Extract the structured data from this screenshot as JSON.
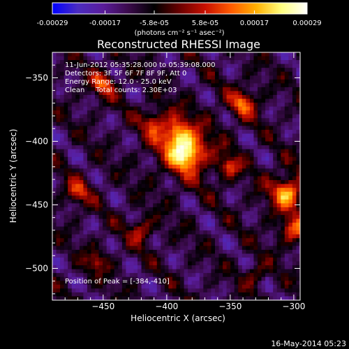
{
  "chart_data": {
    "type": "heatmap",
    "title": "Reconstructed RHESSI Image",
    "xlabel": "Heliocentric X (arcsec)",
    "ylabel": "Heliocentric Y (arcsec)",
    "xlim": [
      -490,
      -295
    ],
    "ylim": [
      -525,
      -330
    ],
    "x_ticks": [
      -450,
      -400,
      -350,
      -300
    ],
    "y_ticks": [
      -350,
      -400,
      -450,
      -500
    ],
    "colorbar": {
      "range": [
        -0.00029,
        0.00029
      ],
      "tick_values": [
        -0.00029,
        -0.00017,
        -5.8e-05,
        5.8e-05,
        0.00017,
        0.00029
      ],
      "tick_labels": [
        "-0.00029",
        "-0.00017",
        "-5.8e-05",
        "5.8e-05",
        "0.00017",
        "0.00029"
      ],
      "colormap": [
        "#0000ff",
        "#4b2cc0",
        "#5a1c9a",
        "#3a0a4a",
        "#000000",
        "#6a0000",
        "#c81000",
        "#ff5a00",
        "#ffb000",
        "#ffff80",
        "#ffffff"
      ],
      "units_label": "(photons cm⁻² s⁻¹ asec⁻²)"
    },
    "annotations": [
      "11-Jun-2012 05:35:28.000 to 05:39:08.000",
      "Detectors: 3F 5F 6F 7F 8F 9F, Att 0",
      "Energy Range: 12.0 - 25.0 keV",
      "Clean     Total counts: 2.30E+03"
    ],
    "peak_label": "Position of Peak = [-384,-410]",
    "peak": [
      -384,
      -410
    ],
    "grid": false,
    "timestamp": "16-May-2014 05:23"
  }
}
